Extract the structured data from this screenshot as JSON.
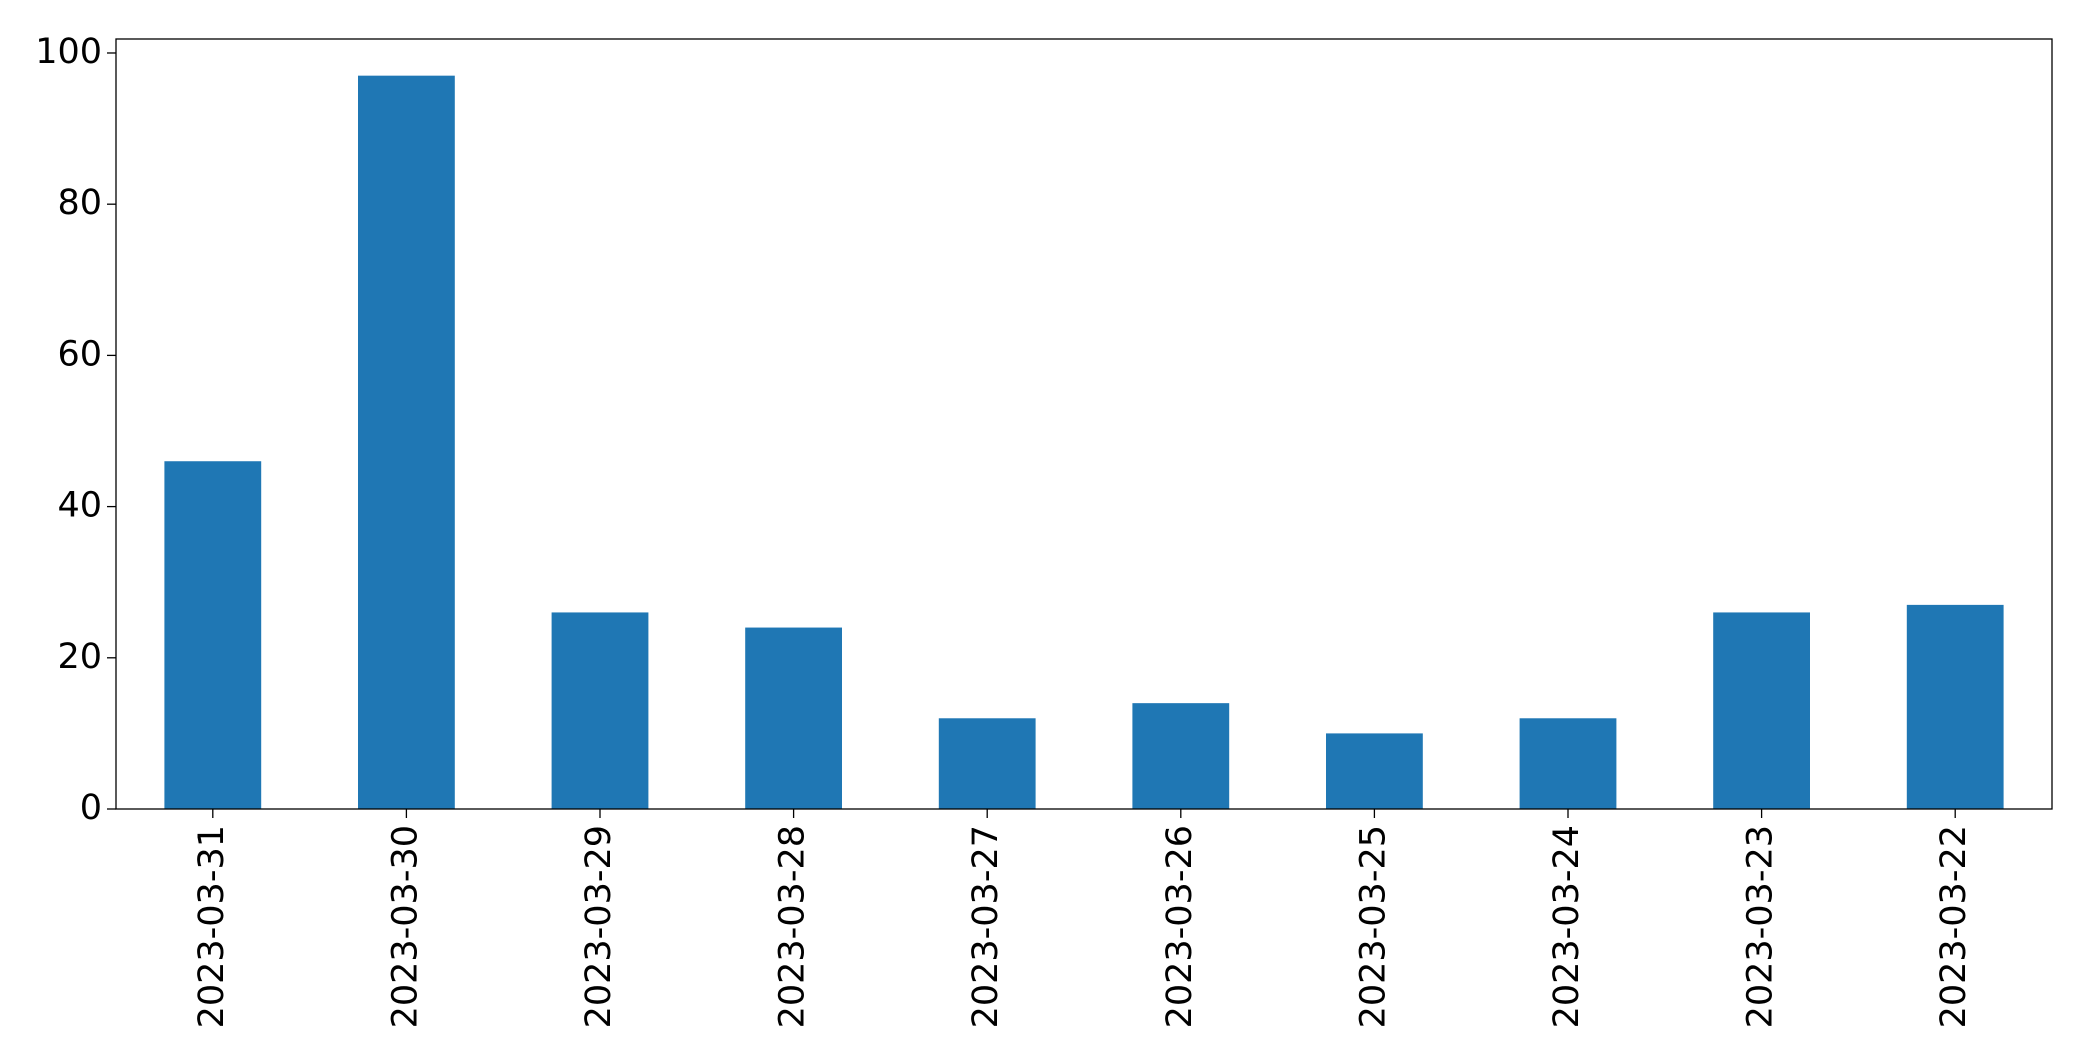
{
  "chart_data": {
    "type": "bar",
    "categories": [
      "2023-03-31",
      "2023-03-30",
      "2023-03-29",
      "2023-03-28",
      "2023-03-27",
      "2023-03-26",
      "2023-03-25",
      "2023-03-24",
      "2023-03-23",
      "2023-03-22"
    ],
    "values": [
      46,
      97,
      26,
      24,
      12,
      14,
      10,
      12,
      26,
      27
    ],
    "color": "#1f77b4",
    "ylim": [
      0,
      101.85
    ],
    "yticks": [
      0,
      20,
      40,
      60,
      80,
      100
    ],
    "grid": false
  }
}
